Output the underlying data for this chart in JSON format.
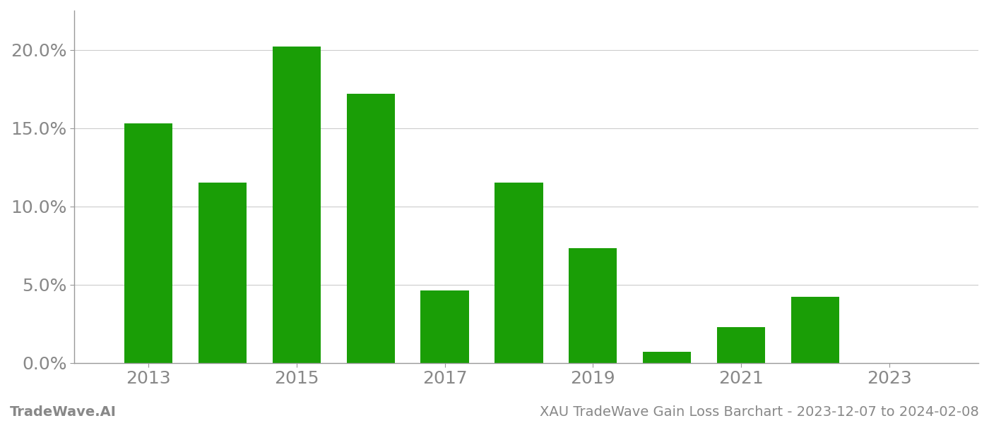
{
  "years": [
    2013,
    2014,
    2015,
    2016,
    2017,
    2018,
    2019,
    2020,
    2021,
    2022,
    2023
  ],
  "values": [
    0.153,
    0.115,
    0.202,
    0.172,
    0.046,
    0.115,
    0.073,
    0.007,
    0.023,
    0.042,
    0.0
  ],
  "bar_color": "#1a9e06",
  "background_color": "#ffffff",
  "grid_color": "#cccccc",
  "spine_color": "#999999",
  "tick_label_color": "#888888",
  "ylabel_ticks": [
    0.0,
    0.05,
    0.1,
    0.15,
    0.2
  ],
  "ylabel_tick_labels": [
    "0.0%",
    "5.0%",
    "10.0%",
    "15.0%",
    "20.0%"
  ],
  "xlabel_ticks": [
    2013,
    2015,
    2017,
    2019,
    2021,
    2023
  ],
  "xlabel_tick_labels": [
    "2013",
    "2015",
    "2017",
    "2019",
    "2021",
    "2023"
  ],
  "footer_left": "TradeWave.AI",
  "footer_right": "XAU TradeWave Gain Loss Barchart - 2023-12-07 to 2024-02-08",
  "ylim": [
    0.0,
    0.225
  ],
  "xlim": [
    2012.0,
    2024.2
  ],
  "bar_width": 0.65,
  "tick_fontsize": 18,
  "footer_fontsize": 14
}
